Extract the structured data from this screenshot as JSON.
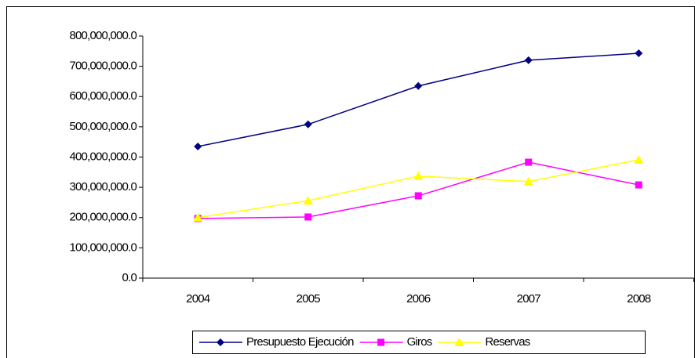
{
  "chart_data": {
    "type": "line",
    "categories": [
      "2004",
      "2005",
      "2006",
      "2007",
      "2008"
    ],
    "series": [
      {
        "name": "Presupuesto Ejecución",
        "color": "#000080",
        "marker": "diamond",
        "values": [
          435000000,
          508000000,
          635000000,
          720000000,
          743000000
        ]
      },
      {
        "name": "Giros",
        "color": "#ff00ff",
        "marker": "square",
        "values": [
          197000000,
          202000000,
          272000000,
          383000000,
          308000000
        ]
      },
      {
        "name": "Reservas",
        "color": "#ffff00",
        "marker": "triangle",
        "values": [
          200000000,
          256000000,
          337000000,
          319000000,
          391000000
        ]
      }
    ],
    "ylim": [
      0,
      800000000
    ],
    "yticks": [
      {
        "value": 0,
        "label": "0.0"
      },
      {
        "value": 100000000,
        "label": "100,000,000.0"
      },
      {
        "value": 200000000,
        "label": "200,000,000.0"
      },
      {
        "value": 300000000,
        "label": "300,000,000.0"
      },
      {
        "value": 400000000,
        "label": "400,000,000.0"
      },
      {
        "value": 500000000,
        "label": "500,000,000.0"
      },
      {
        "value": 600000000,
        "label": "600,000,000.0"
      },
      {
        "value": 700000000,
        "label": "700,000,000.0"
      },
      {
        "value": 800000000,
        "label": "800,000,000.0"
      }
    ],
    "grid": false,
    "legend": "bottom"
  }
}
